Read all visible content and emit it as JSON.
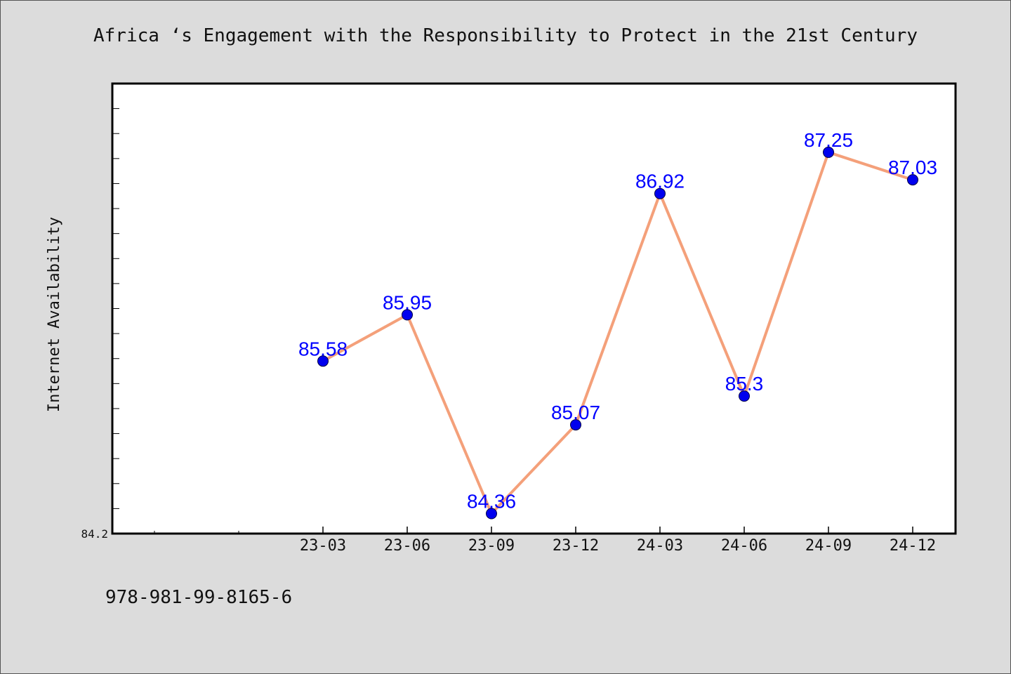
{
  "chart_data": {
    "type": "line",
    "title": "Africa ‘s Engagement with the Responsibility to Protect in the 21st Century",
    "xlabel": "",
    "ylabel": "Internet Availability",
    "categories": [
      "23-03",
      "23-06",
      "23-09",
      "23-12",
      "24-03",
      "24-06",
      "24-09",
      "24-12"
    ],
    "series": [
      {
        "values": [
          85.58,
          85.95,
          84.36,
          85.07,
          86.92,
          85.3,
          87.25,
          87.03
        ],
        "data_labels": [
          "85.58",
          "85.95",
          "84.36",
          "85.07",
          "86.92",
          "85.3",
          "87.25",
          "87.03"
        ],
        "line_color": "#f4a07a",
        "marker_color": "#0000ee"
      }
    ],
    "ylim": [
      84.2,
      87.8
    ],
    "y_tick_labels": [
      "84.2"
    ],
    "grid": false,
    "label_color": "#0000ff"
  },
  "footer": {
    "isbn": "978-981-99-8165-6"
  }
}
